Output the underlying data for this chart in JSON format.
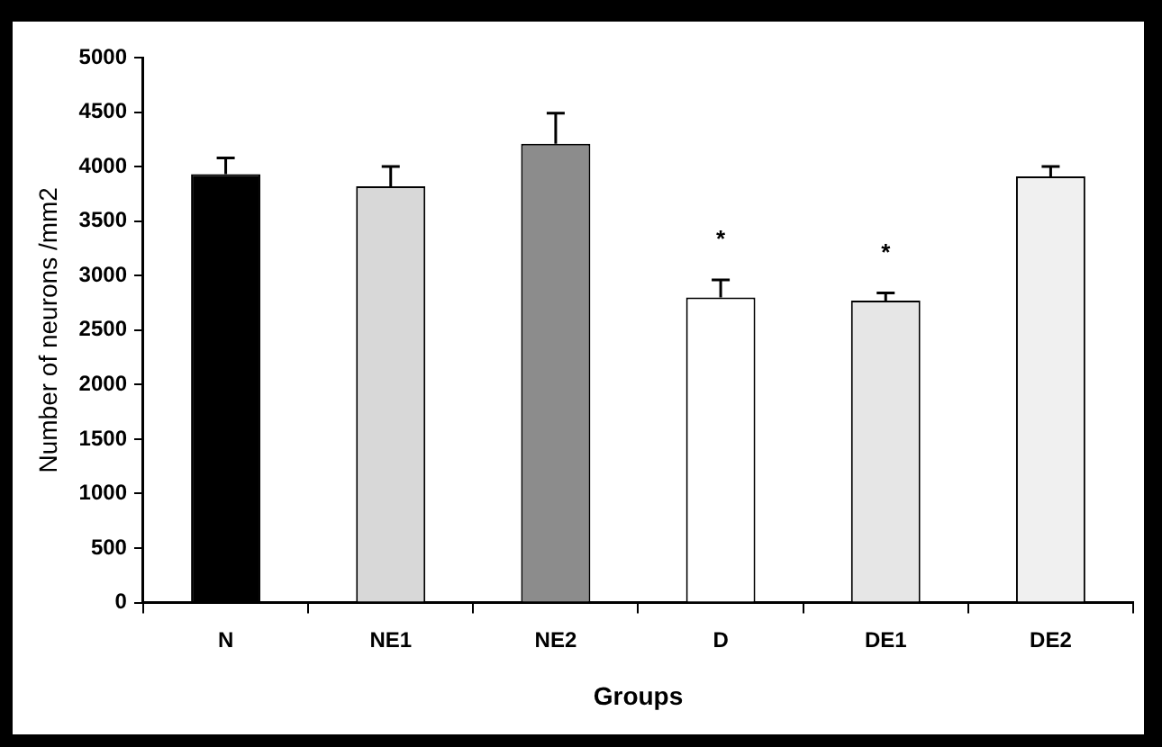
{
  "chart_data": {
    "type": "bar",
    "xlabel": "Groups",
    "ylabel": "Number of neurons /mm2",
    "categories": [
      "N",
      "NE1",
      "NE2",
      "D",
      "DE1",
      "DE2"
    ],
    "values": [
      3930,
      3820,
      4210,
      2800,
      2770,
      3910
    ],
    "colors": [
      "#000000",
      "#d8d8d8",
      "#8c8c8c",
      "#ffffff",
      "#e6e6e6",
      "#f0f0f0"
    ],
    "errors": [
      [
        3930,
        4080
      ],
      [
        3820,
        4000
      ],
      [
        4210,
        4490
      ],
      [
        2800,
        2960
      ],
      [
        2770,
        2840
      ],
      [
        3910,
        4000
      ]
    ],
    "ylim": [
      0,
      5000
    ],
    "yticks": [
      0,
      500,
      1000,
      1500,
      2000,
      2500,
      3000,
      3500,
      4000,
      4500,
      5000
    ],
    "annotations": [
      {
        "text": "*",
        "x": "D",
        "y": 2960
      },
      {
        "text": "*",
        "x": "DE1",
        "y": 2840
      }
    ],
    "grid": false,
    "legend": false
  }
}
